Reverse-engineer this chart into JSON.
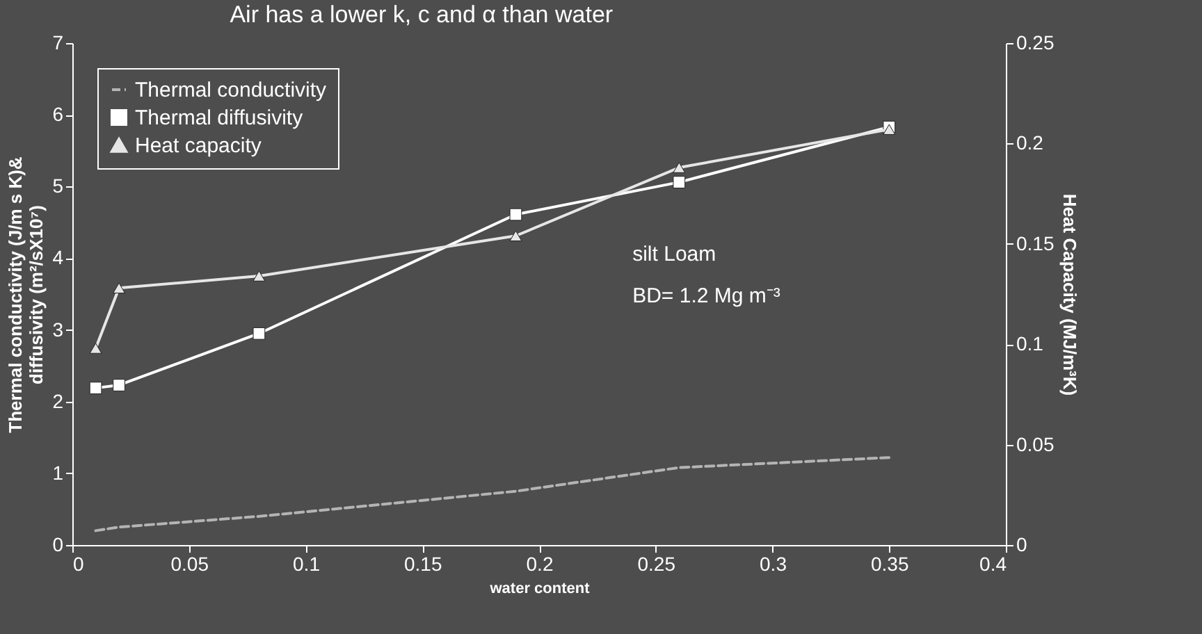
{
  "chart_data": {
    "type": "line",
    "title": "Air has a lower k, c and α than water",
    "xlabel": "water content",
    "ylabel": "Thermal conductivity (J/m s K)& diffusivity (m²/sX10⁷)",
    "y2label": "Heat Capacity (MJ/m³K)",
    "x": [
      0.01,
      0.02,
      0.08,
      0.19,
      0.26,
      0.35
    ],
    "series": [
      {
        "name": "Thermal conductivity",
        "color": "#b4b4b4",
        "values": [
          0.2,
          0.25,
          0.4,
          0.75,
          1.08,
          1.22
        ],
        "marker": "none",
        "line_style": "dashed"
      },
      {
        "name": "Thermal diffusivity",
        "color": "#ffffff",
        "values": [
          2.19,
          2.23,
          2.95,
          4.61,
          5.06,
          5.83
        ],
        "marker": "square",
        "line_style": "solid"
      },
      {
        "name": "Heat capacity",
        "color": "#e6e6e6",
        "values": [
          0.098,
          0.128,
          0.134,
          0.154,
          0.188,
          0.207
        ],
        "marker": "triangle",
        "line_style": "solid",
        "axis": "y2"
      }
    ],
    "xlim": [
      0,
      0.4
    ],
    "xticks": [
      0,
      0.05,
      0.1,
      0.15,
      0.2,
      0.25,
      0.3,
      0.35,
      0.4
    ],
    "ylim": [
      0,
      7
    ],
    "yticks": [
      0,
      1,
      2,
      3,
      4,
      5,
      6,
      7
    ],
    "y2lim": [
      0,
      0.25
    ],
    "y2ticks": [
      0,
      0.05,
      0.1,
      0.15,
      0.2,
      0.25
    ],
    "annotations": [
      "silt Loam",
      "BD= 1.2 Mg m⁻³"
    ],
    "legend": "top left",
    "grid": false
  }
}
